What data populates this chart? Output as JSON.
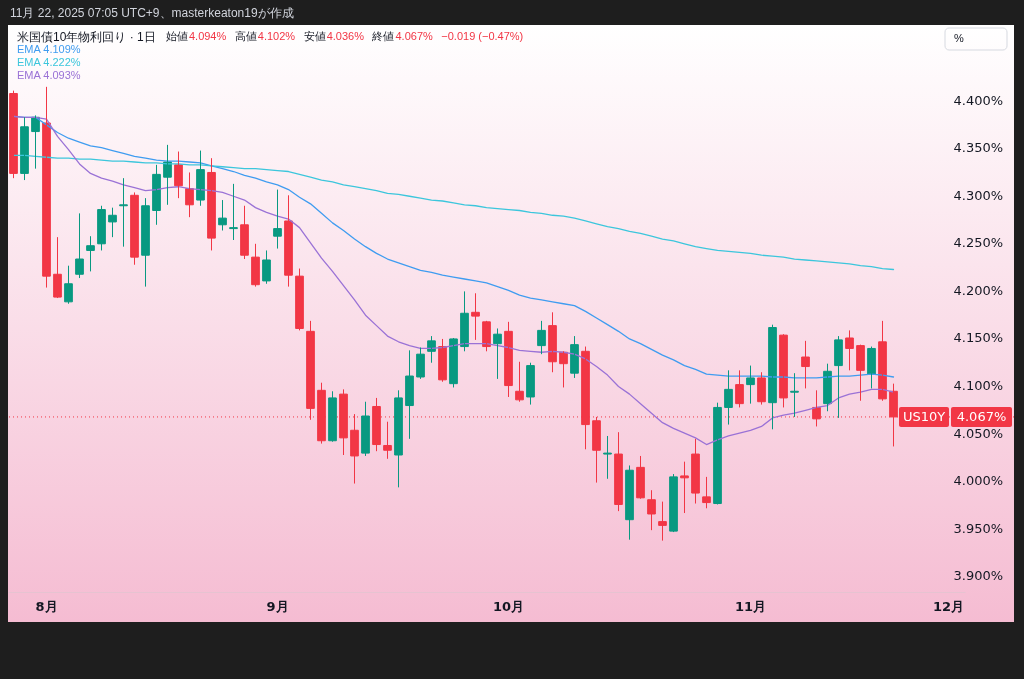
{
  "chart_data": {
    "type": "candlestick",
    "title": "米国債10年物利回り · 1日",
    "annotations": [
      "11月 22, 2025 07:05 UTC+9、masterkeaton19が作成",
      "始値",
      "4.094%",
      "高値",
      "4.102%",
      "安値",
      "4.036%",
      "終値",
      "4.067%",
      "−0.019 (−0.47%)",
      "%"
    ],
    "categories": [
      null,
      null,
      null,
      "8月",
      null,
      null,
      null,
      null,
      null,
      null,
      null,
      null,
      null,
      null,
      null,
      null,
      null,
      null,
      null,
      null,
      null,
      null,
      null,
      null,
      "9月",
      null,
      null,
      null,
      null,
      null,
      null,
      null,
      null,
      null,
      null,
      null,
      null,
      null,
      null,
      null,
      null,
      null,
      null,
      null,
      null,
      "10月",
      null,
      null,
      null,
      null,
      null,
      null,
      null,
      null,
      null,
      null,
      null,
      null,
      null,
      null,
      null,
      null,
      null,
      null,
      null,
      null,
      null,
      "11月",
      null,
      null,
      null,
      null,
      null,
      null,
      null,
      null,
      null,
      null,
      null,
      null,
      null,
      null,
      null,
      null,
      null,
      "12月",
      null
    ],
    "ohlc": [
      [
        4.407,
        4.41,
        4.318,
        4.323
      ],
      [
        4.323,
        4.382,
        4.316,
        4.372
      ],
      [
        4.367,
        4.384,
        4.328,
        4.382
      ],
      [
        4.376,
        4.414,
        4.203,
        4.215
      ],
      [
        4.217,
        4.256,
        4.192,
        4.193
      ],
      [
        4.188,
        4.226,
        4.186,
        4.207
      ],
      [
        4.217,
        4.281,
        4.213,
        4.233
      ],
      [
        4.242,
        4.257,
        4.22,
        4.247
      ],
      [
        4.249,
        4.289,
        4.242,
        4.285
      ],
      [
        4.272,
        4.287,
        4.256,
        4.279
      ],
      [
        4.289,
        4.318,
        4.246,
        4.29
      ],
      [
        4.3,
        4.303,
        4.227,
        4.235
      ],
      [
        4.237,
        4.297,
        4.204,
        4.289
      ],
      [
        4.284,
        4.332,
        4.269,
        4.322
      ],
      [
        4.319,
        4.353,
        4.29,
        4.335
      ],
      [
        4.332,
        4.346,
        4.297,
        4.31
      ],
      [
        4.307,
        4.324,
        4.277,
        4.29
      ],
      [
        4.295,
        4.347,
        4.289,
        4.327
      ],
      [
        4.324,
        4.339,
        4.242,
        4.255
      ],
      [
        4.269,
        4.295,
        4.263,
        4.276
      ],
      [
        4.265,
        4.312,
        4.253,
        4.266
      ],
      [
        4.269,
        4.289,
        4.233,
        4.237
      ],
      [
        4.235,
        4.249,
        4.204,
        4.206
      ],
      [
        4.21,
        4.242,
        4.207,
        4.232
      ],
      [
        4.257,
        4.306,
        4.244,
        4.265
      ],
      [
        4.273,
        4.3,
        4.204,
        4.216
      ],
      [
        4.215,
        4.223,
        4.158,
        4.16
      ],
      [
        4.157,
        4.168,
        4.064,
        4.076
      ],
      [
        4.095,
        4.103,
        4.039,
        4.042
      ],
      [
        4.042,
        4.094,
        4.041,
        4.087
      ],
      [
        4.091,
        4.096,
        4.027,
        4.045
      ],
      [
        4.053,
        4.07,
        3.997,
        4.026
      ],
      [
        4.029,
        4.083,
        4.026,
        4.068
      ],
      [
        4.078,
        4.087,
        4.031,
        4.038
      ],
      [
        4.037,
        4.062,
        4.023,
        4.032
      ],
      [
        4.027,
        4.095,
        3.993,
        4.087
      ],
      [
        4.079,
        4.137,
        4.044,
        4.11
      ],
      [
        4.109,
        4.14,
        4.107,
        4.133
      ],
      [
        4.136,
        4.152,
        4.124,
        4.147
      ],
      [
        4.141,
        4.149,
        4.104,
        4.106
      ],
      [
        4.102,
        4.15,
        4.098,
        4.149
      ],
      [
        4.141,
        4.199,
        4.136,
        4.176
      ],
      [
        4.177,
        4.197,
        4.148,
        4.173
      ],
      [
        4.167,
        4.168,
        4.136,
        4.141
      ],
      [
        4.144,
        4.16,
        4.107,
        4.154
      ],
      [
        4.157,
        4.167,
        4.088,
        4.1
      ],
      [
        4.094,
        4.125,
        4.083,
        4.085
      ],
      [
        4.088,
        4.124,
        4.08,
        4.121
      ],
      [
        4.142,
        4.168,
        4.133,
        4.158
      ],
      [
        4.163,
        4.177,
        4.114,
        4.125
      ],
      [
        4.135,
        4.136,
        4.098,
        4.123
      ],
      [
        4.113,
        4.152,
        4.108,
        4.143
      ],
      [
        4.136,
        4.141,
        4.033,
        4.059
      ],
      [
        4.063,
        4.067,
        3.998,
        4.032
      ],
      [
        4.028,
        4.047,
        4.002,
        4.029
      ],
      [
        4.028,
        4.051,
        3.968,
        3.975
      ],
      [
        3.959,
        4.016,
        3.938,
        4.011
      ],
      [
        4.014,
        4.026,
        3.981,
        3.982
      ],
      [
        3.98,
        3.99,
        3.948,
        3.965
      ],
      [
        3.957,
        3.978,
        3.937,
        3.953
      ],
      [
        3.947,
        4.007,
        3.946,
        4.004
      ],
      [
        4.005,
        4.02,
        3.966,
        4.003
      ],
      [
        4.028,
        4.044,
        3.976,
        3.987
      ],
      [
        3.983,
        4.004,
        3.971,
        3.977
      ],
      [
        3.976,
        4.082,
        3.975,
        4.077
      ],
      [
        4.077,
        4.116,
        4.059,
        4.096
      ],
      [
        4.101,
        4.116,
        4.077,
        4.081
      ],
      [
        4.101,
        4.121,
        4.081,
        4.108
      ],
      [
        4.108,
        4.114,
        4.08,
        4.083
      ],
      [
        4.082,
        4.164,
        4.054,
        4.161
      ],
      [
        4.153,
        4.154,
        4.077,
        4.087
      ],
      [
        4.093,
        4.113,
        4.067,
        4.094
      ],
      [
        4.13,
        4.147,
        4.097,
        4.12
      ],
      [
        4.077,
        4.095,
        4.057,
        4.065
      ],
      [
        4.081,
        4.123,
        4.073,
        4.115
      ],
      [
        4.121,
        4.152,
        4.066,
        4.148
      ],
      [
        4.15,
        4.158,
        4.116,
        4.139
      ],
      [
        4.142,
        4.143,
        4.084,
        4.116
      ],
      [
        4.112,
        4.141,
        4.097,
        4.139
      ],
      [
        4.146,
        4.168,
        4.084,
        4.086
      ],
      [
        4.094,
        4.102,
        4.036,
        4.067
      ],
      null,
      null,
      null,
      null,
      null,
      null
    ],
    "colors": [
      "#f23645",
      "#089981",
      "#089981",
      "#f23645",
      "#f23645",
      "#089981",
      "#089981",
      "#089981",
      "#089981",
      "#089981",
      "#089981",
      "#f23645",
      "#089981",
      "#089981",
      "#089981",
      "#f23645",
      "#f23645",
      "#089981",
      "#f23645",
      "#089981",
      "#089981",
      "#f23645",
      "#f23645",
      "#089981",
      "#089981",
      "#f23645",
      "#f23645",
      "#f23645",
      "#f23645",
      "#089981",
      "#f23645",
      "#f23645",
      "#089981",
      "#f23645",
      "#f23645",
      "#089981",
      "#089981",
      "#089981",
      "#089981",
      "#f23645",
      "#089981",
      "#089981",
      "#f23645",
      "#f23645",
      "#089981",
      "#f23645",
      "#f23645",
      "#089981",
      "#089981",
      "#f23645",
      "#f23645",
      "#089981",
      "#f23645",
      "#f23645",
      "#089981",
      "#f23645",
      "#089981",
      "#f23645",
      "#f23645",
      "#f23645",
      "#089981",
      "#f23645",
      "#f23645",
      "#f23645",
      "#089981",
      "#089981",
      "#f23645",
      "#089981",
      "#f23645",
      "#089981",
      "#f23645",
      "#089981",
      "#f23645",
      "#f23645",
      "#089981",
      "#089981",
      "#f23645",
      "#f23645",
      "#089981",
      "#f23645",
      "#f23645",
      null,
      null,
      null,
      null,
      null,
      null
    ],
    "series": [
      {
        "name": "EMA 4.109%",
        "type": "line",
        "color": "#3f9cf0",
        "values": [
          4.383,
          4.382,
          4.382,
          4.374,
          4.366,
          4.36,
          4.356,
          4.352,
          4.35,
          4.347,
          4.344,
          4.341,
          4.339,
          4.337,
          4.336,
          4.336,
          4.335,
          4.334,
          4.331,
          4.328,
          4.325,
          4.321,
          4.318,
          4.314,
          4.311,
          4.306,
          4.298,
          4.291,
          4.281,
          4.271,
          4.263,
          4.254,
          4.246,
          4.239,
          4.233,
          4.229,
          4.225,
          4.221,
          4.219,
          4.216,
          4.214,
          4.212,
          4.21,
          4.208,
          4.204,
          4.2,
          4.195,
          4.192,
          4.19,
          4.188,
          4.186,
          4.184,
          4.178,
          4.171,
          4.164,
          4.157,
          4.149,
          4.144,
          4.138,
          4.132,
          4.127,
          4.121,
          4.117,
          4.112,
          4.111,
          4.11,
          4.11,
          4.11,
          4.11,
          4.109,
          4.109,
          4.108,
          4.108,
          4.108,
          4.109,
          4.11,
          4.11,
          4.111,
          4.112,
          4.111,
          4.109,
          null,
          null,
          null,
          null,
          null,
          null
        ]
      },
      {
        "name": "EMA 4.222%",
        "type": "line",
        "color": "#3cc6dc",
        "values": [
          4.342,
          4.342,
          4.341,
          4.34,
          4.339,
          4.339,
          4.338,
          4.338,
          4.337,
          4.336,
          4.336,
          4.335,
          4.334,
          4.334,
          4.333,
          4.333,
          4.332,
          4.332,
          4.331,
          4.33,
          4.329,
          4.328,
          4.328,
          4.327,
          4.326,
          4.325,
          4.322,
          4.319,
          4.316,
          4.314,
          4.311,
          4.309,
          4.307,
          4.305,
          4.302,
          4.301,
          4.299,
          4.297,
          4.295,
          4.294,
          4.292,
          4.29,
          4.289,
          4.287,
          4.286,
          4.285,
          4.284,
          4.282,
          4.281,
          4.279,
          4.278,
          4.276,
          4.273,
          4.27,
          4.267,
          4.265,
          4.262,
          4.26,
          4.257,
          4.254,
          4.252,
          4.249,
          4.246,
          4.244,
          4.242,
          4.241,
          4.24,
          4.239,
          4.237,
          4.236,
          4.235,
          4.233,
          4.232,
          4.231,
          4.23,
          4.229,
          4.228,
          4.226,
          4.225,
          4.223,
          4.222,
          null,
          null,
          null,
          null,
          null,
          null
        ]
      },
      {
        "name": "EMA 4.093%",
        "type": "line",
        "color": "#9a72d6",
        "values": [
          4.383,
          4.382,
          4.382,
          4.38,
          4.362,
          4.348,
          4.333,
          4.323,
          4.318,
          4.315,
          4.311,
          4.308,
          4.305,
          4.306,
          4.308,
          4.309,
          4.307,
          4.306,
          4.305,
          4.303,
          4.299,
          4.295,
          4.287,
          4.282,
          4.278,
          4.275,
          4.266,
          4.25,
          4.234,
          4.22,
          4.205,
          4.19,
          4.174,
          4.163,
          4.152,
          4.146,
          4.142,
          4.139,
          4.139,
          4.14,
          4.142,
          4.144,
          4.144,
          4.144,
          4.142,
          4.14,
          4.137,
          4.136,
          4.135,
          4.136,
          4.135,
          4.133,
          4.128,
          4.12,
          4.111,
          4.099,
          4.091,
          4.081,
          4.071,
          4.061,
          4.055,
          4.05,
          4.045,
          4.038,
          4.043,
          4.047,
          4.05,
          4.053,
          4.057,
          4.066,
          4.069,
          4.071,
          4.074,
          4.077,
          4.079,
          4.087,
          4.091,
          4.093,
          4.096,
          4.096,
          4.093,
          null,
          null,
          null,
          null,
          null,
          null
        ]
      }
    ],
    "ylim": [
      3.883,
      4.479
    ],
    "yticks": [
      {
        "value": 3.9,
        "label": "3.900%"
      },
      {
        "value": 3.95,
        "label": "3.950%"
      },
      {
        "value": 4.0,
        "label": "4.000%"
      },
      {
        "value": 4.05,
        "label": "4.050%"
      },
      {
        "value": 4.1,
        "label": "4.100%"
      },
      {
        "value": 4.15,
        "label": "4.150%"
      },
      {
        "value": 4.2,
        "label": "4.200%"
      },
      {
        "value": 4.25,
        "label": "4.250%"
      },
      {
        "value": 4.3,
        "label": "4.300%"
      },
      {
        "value": 4.35,
        "label": "4.350%"
      },
      {
        "value": 4.4,
        "label": "4.400%"
      },
      {
        "value": 4.067,
        "label": "4.067%"
      }
    ],
    "ref_lines": [
      {
        "axis": "y",
        "value": 4.067,
        "label": "US10Y",
        "color": "#f23645",
        "line_style": "dotted"
      }
    ],
    "legend": "top left"
  }
}
